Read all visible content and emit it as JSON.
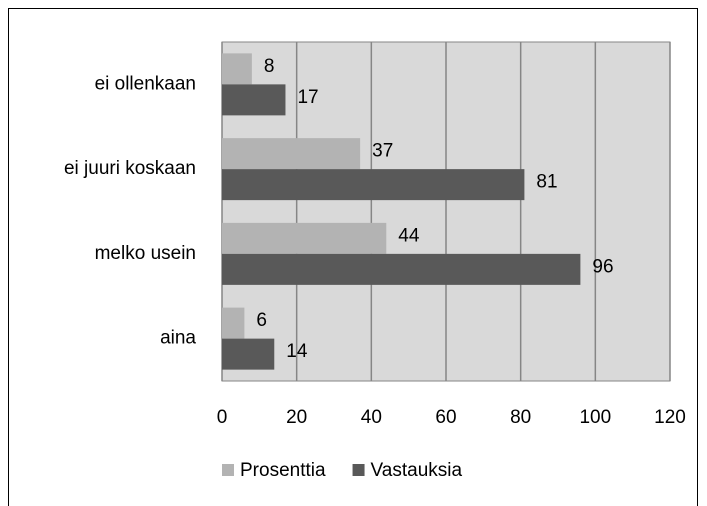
{
  "chart_data": {
    "type": "bar",
    "orientation": "horizontal",
    "categories": [
      "ei ollenkaan",
      "ei juuri koskaan",
      "melko usein",
      "aina"
    ],
    "series": [
      {
        "name": "Prosenttia",
        "color": "#b3b3b3",
        "values": [
          8,
          37,
          44,
          6
        ]
      },
      {
        "name": "Vastauksia",
        "color": "#595959",
        "values": [
          17,
          81,
          96,
          14
        ]
      }
    ],
    "xlim": [
      0,
      120
    ],
    "xticks": [
      0,
      20,
      40,
      60,
      80,
      100,
      120
    ],
    "grid": true,
    "legend": "bottom"
  }
}
